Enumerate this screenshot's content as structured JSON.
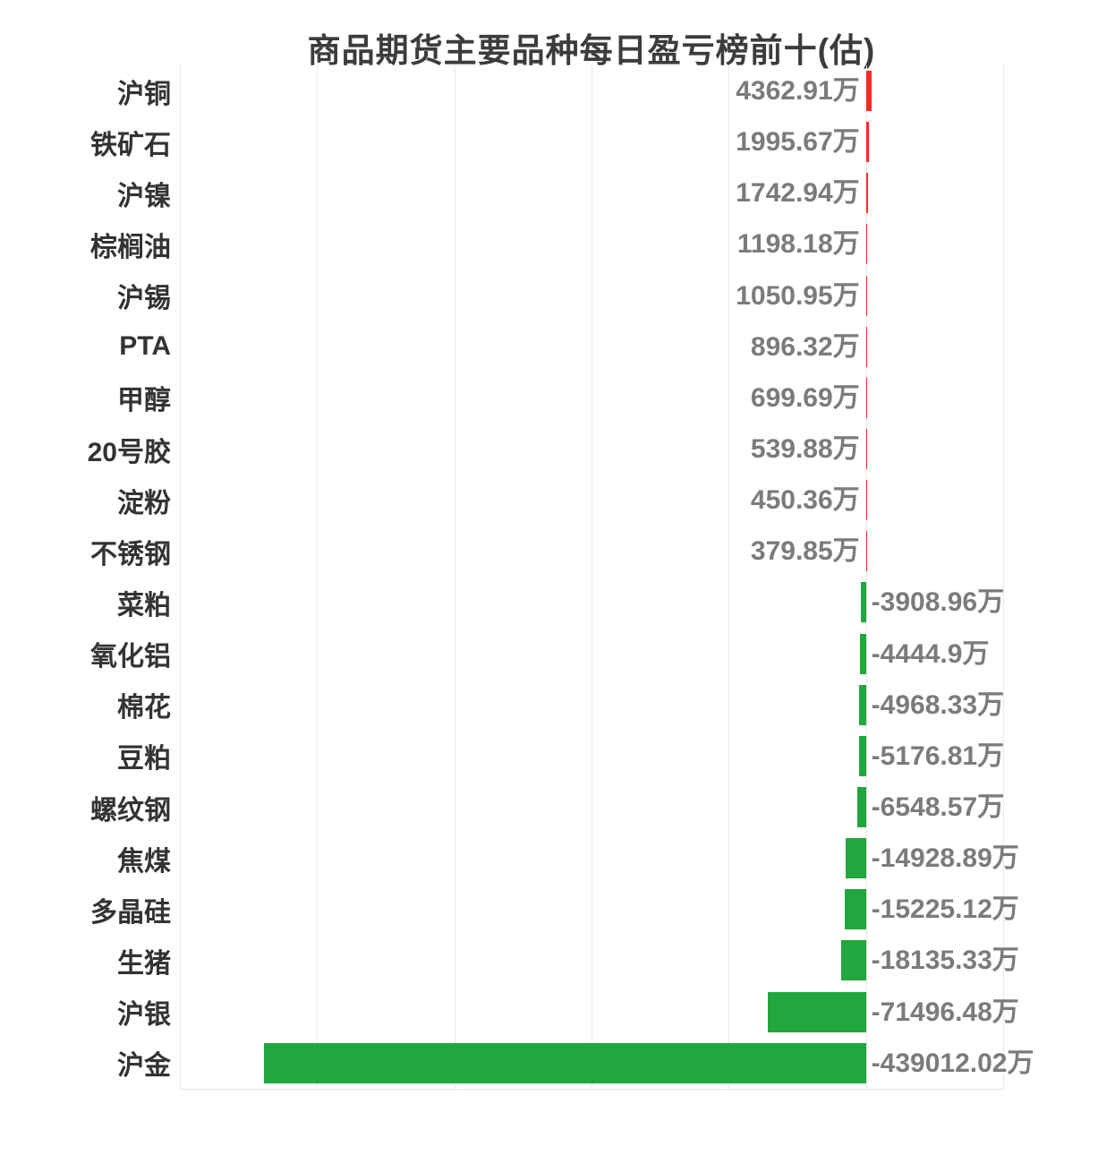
{
  "title": "商品期货主要品种每日盈亏榜前十(估)",
  "chart_data": {
    "type": "bar",
    "orientation": "horizontal",
    "title": "商品期货主要品种每日盈亏榜前十(估)",
    "unit": "万",
    "categories": [
      "沪铜",
      "铁矿石",
      "沪镍",
      "棕榈油",
      "沪锡",
      "PTA",
      "甲醇",
      "20号胶",
      "淀粉",
      "不锈钢",
      "菜粕",
      "氧化铝",
      "棉花",
      "豆粕",
      "螺纹钢",
      "焦煤",
      "多晶硅",
      "生猪",
      "沪银",
      "沪金"
    ],
    "values": [
      4362.91,
      1995.67,
      1742.94,
      1198.18,
      1050.95,
      896.32,
      699.69,
      539.88,
      450.36,
      379.85,
      -3908.96,
      -4444.9,
      -4968.33,
      -5176.81,
      -6548.57,
      -14928.89,
      -15225.12,
      -18135.33,
      -71496.48,
      -439012.02
    ],
    "value_labels": [
      "4362.91万",
      "1995.67万",
      "1742.94万",
      "1198.18万",
      "1050.95万",
      "896.32万",
      "699.69万",
      "539.88万",
      "450.36万",
      "379.85万",
      "-3908.96万",
      "-4444.9万",
      "-4968.33万",
      "-5176.81万",
      "-6548.57万",
      "-14928.89万",
      "-15225.12万",
      "-18135.33万",
      "-71496.48万",
      "-439012.02万"
    ],
    "xlim": [
      -500000,
      100000
    ],
    "grid_interval": 100000,
    "grid": true,
    "legend": "none",
    "x_tick_labels_visible": false,
    "colors": {
      "positive_bar": "#f92c22",
      "negative_bar": "#22a63e",
      "gridline": "#e8e8e8",
      "value_label": "#7b7b7b",
      "category_label": "#333333",
      "title": "#3c3c3c"
    }
  }
}
